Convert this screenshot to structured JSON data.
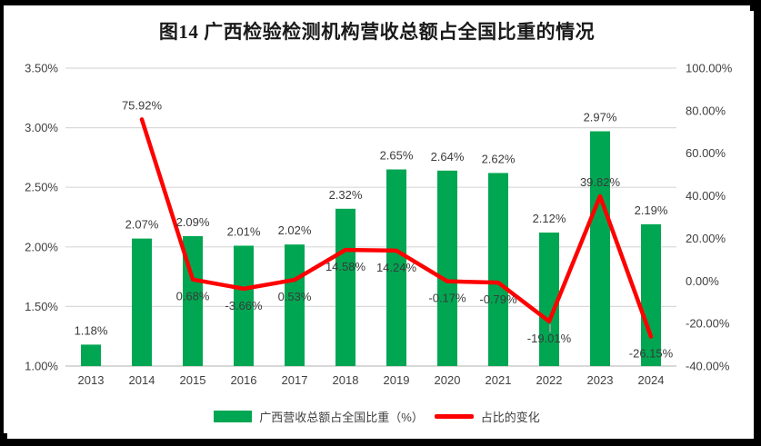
{
  "title": "图14 广西检验检测机构营收总额占全国比重的情况",
  "legend": [
    {
      "label": "广西营收总额占全国比重（%）",
      "series": "bar"
    },
    {
      "label": "占比的变化",
      "series": "line"
    }
  ],
  "colors": {
    "bar": "#00A651",
    "line": "#FE0000",
    "grid": "#D9D9D9",
    "axis_line": "#C0C0C0",
    "tick_text": "#404040",
    "data_label": "#3B3B3B",
    "leader": "#A6A6A6",
    "border": "#000000",
    "background": "#FFFFFF"
  },
  "chart_data": {
    "type": "bar+line",
    "categories": [
      "2013",
      "2014",
      "2015",
      "2016",
      "2017",
      "2018",
      "2019",
      "2020",
      "2021",
      "2022",
      "2023",
      "2024"
    ],
    "series": [
      {
        "name": "广西营收总额占全国比重（%）",
        "type": "bar",
        "axis": "left",
        "values": [
          1.18,
          2.07,
          2.09,
          2.01,
          2.02,
          2.32,
          2.65,
          2.64,
          2.62,
          2.12,
          2.97,
          2.19
        ],
        "labels": [
          "1.18%",
          "2.07%",
          "2.09%",
          "2.01%",
          "2.02%",
          "2.32%",
          "2.65%",
          "2.64%",
          "2.62%",
          "2.12%",
          "2.97%",
          "2.19%"
        ]
      },
      {
        "name": "占比的变化",
        "type": "line",
        "axis": "right",
        "values": [
          null,
          75.92,
          0.68,
          -3.66,
          0.53,
          14.58,
          14.24,
          -0.17,
          -0.79,
          -19.01,
          39.82,
          -26.15
        ],
        "labels": [
          null,
          "75.92%",
          "0.68%",
          "-3.66%",
          "0.53%",
          "14.58%",
          "14.24%",
          "-0.17%",
          "-0.79%",
          "-19.01%",
          "39.82%",
          "-26.15%"
        ],
        "leader_at": "2022"
      }
    ],
    "left_axis": {
      "min": 1.0,
      "max": 3.5,
      "step": 0.5,
      "tick_labels": [
        "1.00%",
        "1.50%",
        "2.00%",
        "2.50%",
        "3.00%",
        "3.50%"
      ]
    },
    "right_axis": {
      "min": -40,
      "max": 100,
      "step": 20,
      "tick_labels": [
        "-40.00%",
        "-20.00%",
        "0.00%",
        "20.00%",
        "40.00%",
        "60.00%",
        "80.00%",
        "100.00%"
      ]
    },
    "grid": "horizontal",
    "legend_position": "bottom"
  }
}
